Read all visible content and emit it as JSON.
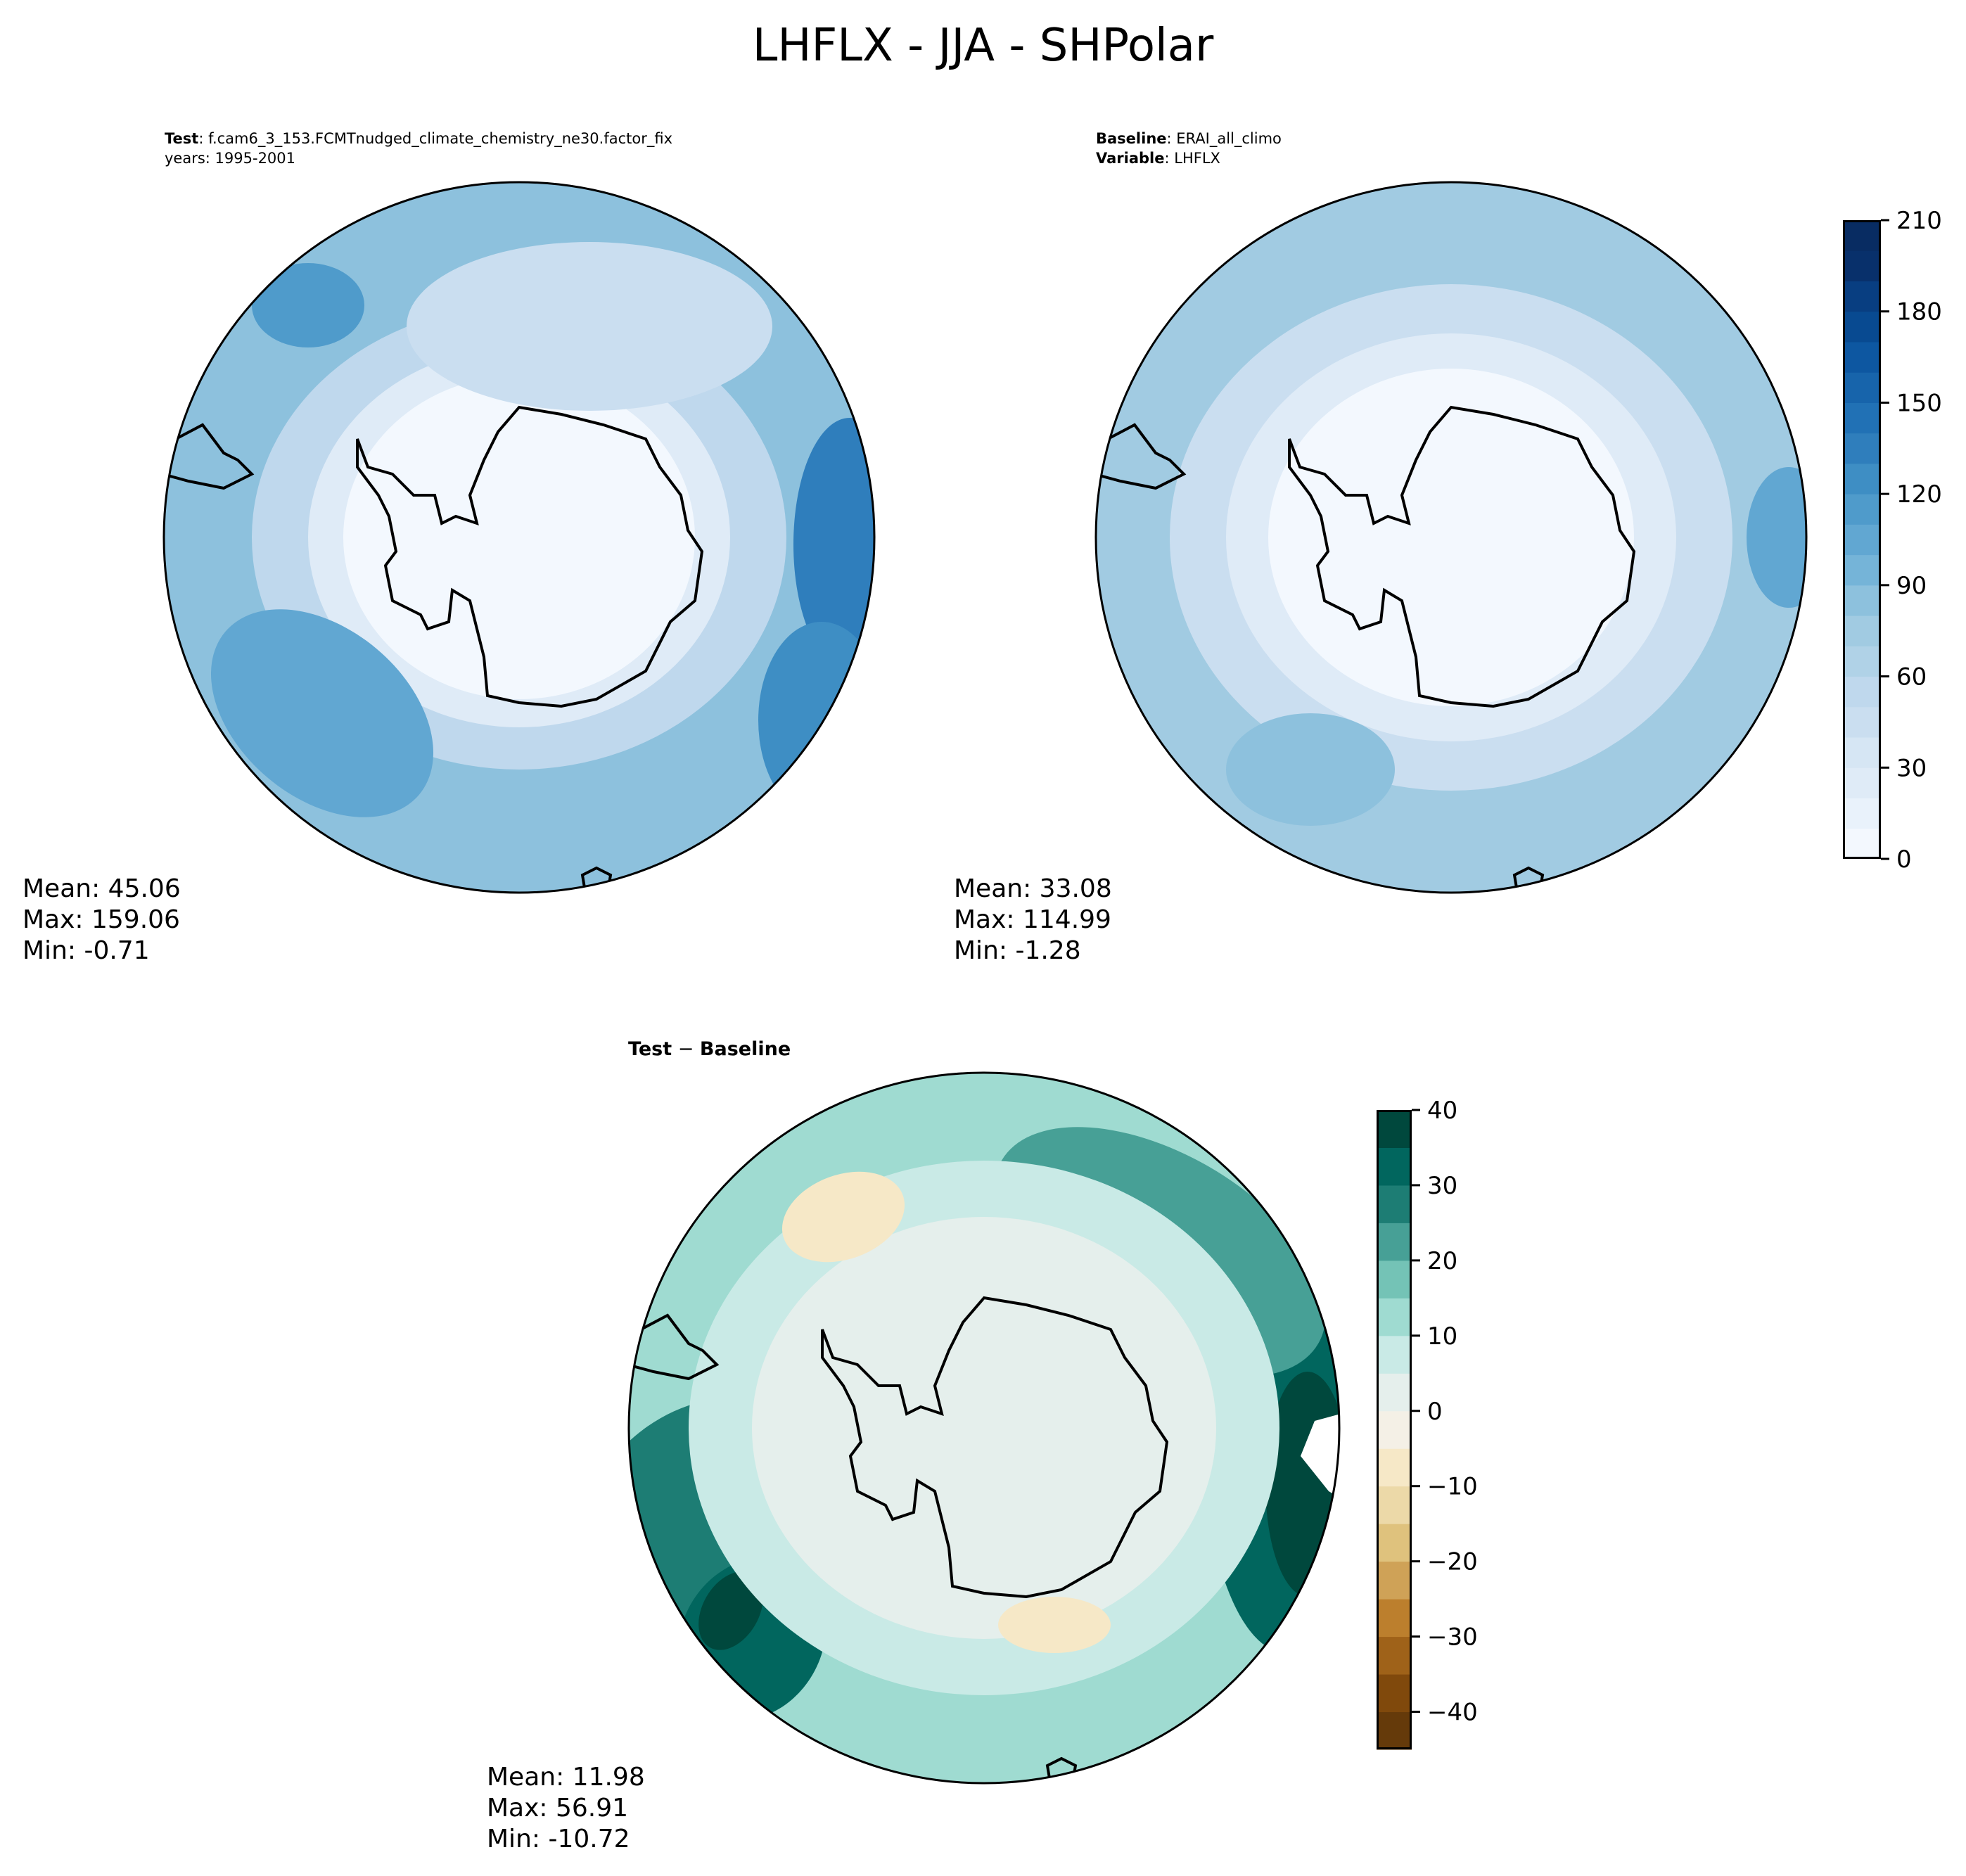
{
  "title": "LHFLX - JJA - SHPolar",
  "panels": [
    {
      "id": "test",
      "header_label": "Test",
      "header_value": "f.cam6_3_153.FCMTnudged_climate_chemistry_ne30.factor_fix",
      "header_line2": "years: 1995-2001",
      "stats": {
        "mean": "Mean: 45.06",
        "max": "Max: 159.06",
        "min": "Min: -0.71"
      }
    },
    {
      "id": "baseline",
      "header_label": "Baseline",
      "header_value": "ERAI_all_climo",
      "header_label2": "Variable",
      "header_value2": "LHFLX",
      "stats": {
        "mean": "Mean: 33.08",
        "max": "Max: 114.99",
        "min": "Min: -1.28"
      }
    },
    {
      "id": "diff",
      "header_label": "Test",
      "header_sep": " − ",
      "header_label2": "Baseline",
      "stats": {
        "mean": "Mean: 11.98",
        "max": "Max: 56.91",
        "min": "Min: -10.72"
      }
    }
  ],
  "chart_data": [
    {
      "type": "heatmap",
      "title": "Test",
      "projection": "south-polar-stereographic",
      "colormap": "Blues",
      "levels_min": 0,
      "levels_max": 210,
      "level_step": 10,
      "ticks": [
        "0",
        "30",
        "60",
        "90",
        "120",
        "150",
        "180",
        "210"
      ],
      "tick_values": [
        0,
        30,
        60,
        90,
        120,
        150,
        180,
        210
      ],
      "mean": 45.06,
      "max": 159.06,
      "min": -0.71
    },
    {
      "type": "heatmap",
      "title": "Baseline",
      "projection": "south-polar-stereographic",
      "colormap": "Blues",
      "mean": 33.08,
      "max": 114.99,
      "min": -1.28
    },
    {
      "type": "heatmap",
      "title": "Test - Baseline",
      "projection": "south-polar-stereographic",
      "colormap": "BrBG",
      "levels_min": -45,
      "levels_max": 40,
      "level_step": 5,
      "ticks": [
        "−40",
        "−30",
        "−20",
        "−10",
        "0",
        "10",
        "20",
        "30",
        "40"
      ],
      "tick_values": [
        -40,
        -30,
        -20,
        -10,
        0,
        10,
        20,
        30,
        40
      ],
      "mean": 11.98,
      "max": 56.91,
      "min": -10.72
    }
  ],
  "colors": {
    "blues": [
      "#f3f8fe",
      "#e9f2fb",
      "#dfebf7",
      "#d6e6f4",
      "#cadef0",
      "#bfd8ed",
      "#b0d2e7",
      "#a1cbe2",
      "#8dc1dd",
      "#75b4d8",
      "#61a7d2",
      "#4f9bcb",
      "#3e8ec4",
      "#2f7ebc",
      "#2171b5",
      "#1764ab",
      "#0d57a1",
      "#084a91",
      "#083e81",
      "#08306b",
      "#082c62"
    ],
    "brbg": [
      "#653a0a",
      "#80490c",
      "#9f6219",
      "#bc7f2d",
      "#cfa257",
      "#dfc27d",
      "#ecd9a8",
      "#f6e8c7",
      "#f4f0e6",
      "#e5efec",
      "#c9eae6",
      "#9fdbd1",
      "#74c3b6",
      "#47a096",
      "#1d7d74",
      "#01665e",
      "#00483d"
    ]
  }
}
